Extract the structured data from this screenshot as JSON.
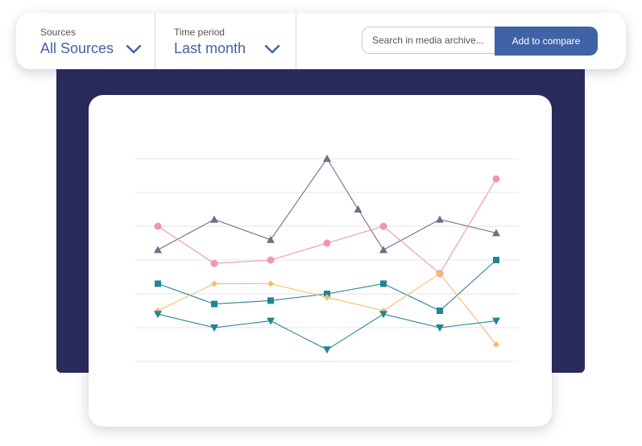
{
  "filters": {
    "sources": {
      "label": "Sources",
      "value": "All Sources"
    },
    "time_period": {
      "label": "Time period",
      "value": "Last month"
    }
  },
  "search": {
    "placeholder": "Search in media archive..."
  },
  "add_button": {
    "label": "Add to compare"
  },
  "colors": {
    "navy_panel": "#2a2a5c",
    "accent": "#3f63a6",
    "grid": "#e6e6e6"
  },
  "chart_data": {
    "type": "line",
    "x": [
      1,
      2,
      3,
      4,
      5,
      6,
      7
    ],
    "ylim": [
      0,
      6
    ],
    "grid": true,
    "series": [
      {
        "color": "#6e6e8a",
        "marker": "triangle-up",
        "values": [
          3.3,
          4.2,
          3.6,
          6.0,
          3.3,
          4.2,
          3.8
        ],
        "extra_points": [
          {
            "x": 4.55,
            "y": 4.5
          }
        ]
      },
      {
        "color": "#ef98a8",
        "marker": "circle",
        "values": [
          4.0,
          2.9,
          3.0,
          3.5,
          4.0,
          2.6,
          5.4
        ]
      },
      {
        "color": "#1f8597",
        "marker": "square",
        "values": [
          2.3,
          1.7,
          1.8,
          2.0,
          2.3,
          1.5,
          3.0
        ]
      },
      {
        "color": "#f2be6a",
        "marker": "diamond",
        "values": [
          1.5,
          2.3,
          2.3,
          1.9,
          1.5,
          2.6,
          0.5
        ]
      },
      {
        "color": "#1f8597",
        "marker": "triangle-down",
        "values": [
          1.4,
          1.0,
          1.2,
          0.35,
          1.4,
          1.0,
          1.2
        ]
      }
    ]
  }
}
